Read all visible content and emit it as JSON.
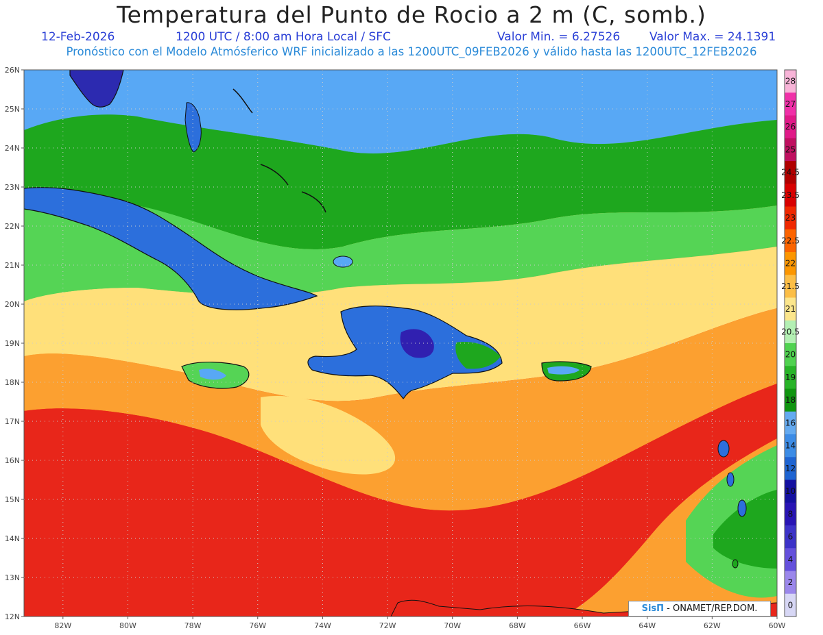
{
  "header": {
    "title": "Temperatura del Punto de Rocio a 2 m (C, somb.)",
    "date": "12-Feb-2026",
    "time": "1200 UTC / 8:00 am Hora Local / SFC",
    "min_label": "Valor Min. = 6.27526",
    "max_label": "Valor Max. = 24.1391",
    "model_line": "Pronóstico con el Modelo Atmósferico WRF inicializado a las 1200UTC_09FEB2026 y válido hasta las  1200UTC_12FEB2026"
  },
  "map": {
    "lon_range": [
      -83.2,
      -60
    ],
    "lat_range": [
      12,
      26
    ],
    "lat_ticks": [
      "26N",
      "25N",
      "24N",
      "23N",
      "22N",
      "21N",
      "20N",
      "19N",
      "18N",
      "17N",
      "16N",
      "15N",
      "14N",
      "13N",
      "12N"
    ],
    "lon_ticks": [
      "82W",
      "80W",
      "78W",
      "76W",
      "74W",
      "72W",
      "70W",
      "68W",
      "66W",
      "64W",
      "62W",
      "60W"
    ],
    "colors": {
      "ocean_north": "#58a8f5",
      "band_green": "#1ea71e",
      "band_lightgreen": "#55d455",
      "band_yellow": "#ffe07a",
      "band_orange": "#fca030",
      "band_red": "#e8261a",
      "land_blue": "#2c6fdc",
      "land_dark": "#3020b0"
    }
  },
  "colorbar": {
    "levels": [
      "28",
      "27",
      "26",
      "25",
      "24.5",
      "23.5",
      "23",
      "22.5",
      "22",
      "21.5",
      "21",
      "20.5",
      "20",
      "19",
      "18",
      "16",
      "14",
      "12",
      "10",
      "8",
      "6",
      "4",
      "2",
      "0"
    ],
    "colors": [
      "#f8b4d8",
      "#f030a8",
      "#e01a88",
      "#c01060",
      "#b00000",
      "#d80000",
      "#f02800",
      "#fc6400",
      "#fc9600",
      "#fcbe46",
      "#fce68c",
      "#b4f0b4",
      "#50d250",
      "#28b428",
      "#109610",
      "#64aaf0",
      "#3c8ce6",
      "#1e64d2",
      "#1410a0",
      "#2814b4",
      "#3c32c8",
      "#6450dc",
      "#9b87eb",
      "#d7d7f5"
    ]
  },
  "credit": {
    "brand": "SisΠ",
    "text": "- ONAMET/REP.DOM."
  }
}
